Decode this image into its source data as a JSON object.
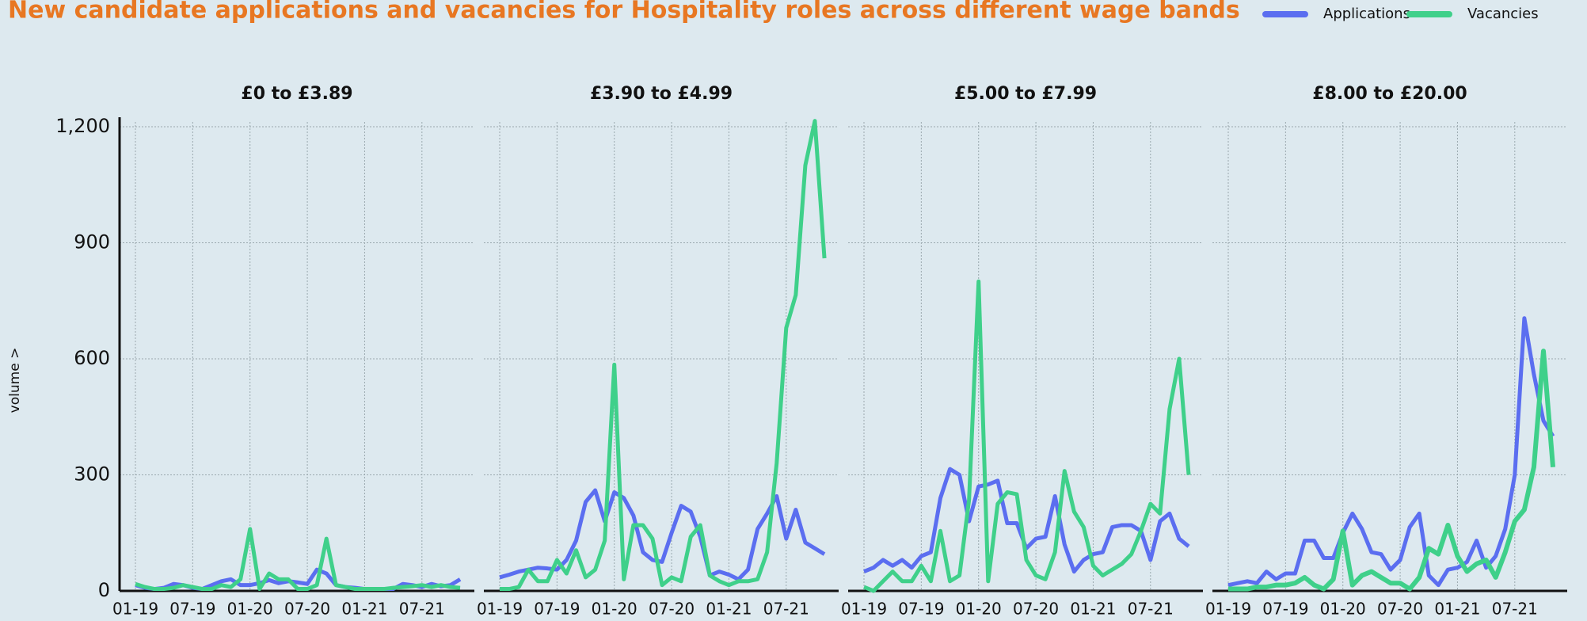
{
  "title": "New candidate applications and vacancies for Hospitality roles across different wage bands",
  "y_label": "volume >",
  "chart_data": [
    {
      "type": "line",
      "title": "£0 to £3.89",
      "grid": true,
      "legend": "top-right",
      "categories": [
        "01-19",
        null,
        null,
        null,
        null,
        null,
        "07-19",
        null,
        null,
        null,
        null,
        null,
        "01-20",
        null,
        null,
        null,
        null,
        null,
        "07-20",
        null,
        null,
        null,
        null,
        null,
        "01-21",
        null,
        null,
        null,
        null,
        null,
        "07-21",
        null,
        null,
        null,
        null
      ],
      "ylim": [
        0,
        1200
      ],
      "yticks": [
        0,
        300,
        600,
        900,
        {
          "value": 1200,
          "label": "1,200"
        }
      ],
      "series": [
        {
          "name": "Applications",
          "color": "#5b6ef0",
          "values": [
            15,
            8,
            5,
            8,
            18,
            15,
            8,
            5,
            15,
            25,
            30,
            15,
            15,
            20,
            28,
            20,
            25,
            22,
            18,
            55,
            45,
            15,
            10,
            8,
            5,
            5,
            5,
            5,
            18,
            15,
            10,
            18,
            12,
            15,
            30
          ]
        },
        {
          "name": "Vacancies",
          "color": "#3fd08a",
          "values": [
            18,
            10,
            5,
            5,
            8,
            15,
            10,
            5,
            5,
            15,
            10,
            30,
            160,
            5,
            45,
            30,
            30,
            5,
            5,
            15,
            135,
            15,
            10,
            5,
            5,
            5,
            5,
            8,
            10,
            12,
            15,
            10,
            15,
            10,
            8
          ]
        }
      ]
    },
    {
      "type": "line",
      "title": "£3.90 to £4.99",
      "categories": [
        "01-19",
        null,
        null,
        null,
        null,
        null,
        "07-19",
        null,
        null,
        null,
        null,
        null,
        "01-20",
        null,
        null,
        null,
        null,
        null,
        "07-20",
        null,
        null,
        null,
        null,
        null,
        "01-21",
        null,
        null,
        null,
        null,
        null,
        "07-21",
        null,
        null,
        null,
        null
      ],
      "series": [
        {
          "name": "Applications",
          "color": "#5b6ef0",
          "values": [
            35,
            42,
            50,
            55,
            60,
            58,
            55,
            80,
            130,
            230,
            260,
            180,
            255,
            240,
            195,
            100,
            80,
            75,
            150,
            220,
            205,
            140,
            40,
            50,
            42,
            30,
            55,
            160,
            200,
            245,
            135,
            210,
            125,
            110,
            95
          ]
        },
        {
          "name": "Vacancies",
          "color": "#3fd08a",
          "values": [
            5,
            5,
            10,
            55,
            25,
            25,
            80,
            45,
            105,
            35,
            55,
            130,
            585,
            30,
            170,
            170,
            135,
            15,
            35,
            25,
            140,
            170,
            40,
            25,
            15,
            25,
            25,
            30,
            100,
            330,
            680,
            765,
            1100,
            1215,
            860
          ]
        }
      ]
    },
    {
      "type": "line",
      "title": "£5.00 to £7.99",
      "categories": [
        "01-19",
        null,
        null,
        null,
        null,
        null,
        "07-19",
        null,
        null,
        null,
        null,
        null,
        "01-20",
        null,
        null,
        null,
        null,
        null,
        "07-20",
        null,
        null,
        null,
        null,
        null,
        "01-21",
        null,
        null,
        null,
        null,
        null,
        "07-21",
        null,
        null,
        null,
        null
      ],
      "series": [
        {
          "name": "Applications",
          "color": "#5b6ef0",
          "values": [
            50,
            60,
            80,
            65,
            80,
            60,
            90,
            100,
            240,
            315,
            300,
            180,
            270,
            275,
            285,
            175,
            175,
            110,
            135,
            140,
            245,
            120,
            50,
            80,
            95,
            100,
            165,
            170,
            170,
            155,
            80,
            180,
            200,
            135,
            115
          ]
        },
        {
          "name": "Vacancies",
          "color": "#3fd08a",
          "values": [
            10,
            0,
            25,
            50,
            25,
            25,
            65,
            25,
            155,
            25,
            40,
            235,
            800,
            25,
            225,
            255,
            250,
            80,
            40,
            30,
            100,
            310,
            205,
            165,
            65,
            40,
            55,
            70,
            95,
            155,
            225,
            200,
            470,
            600,
            300
          ]
        }
      ]
    },
    {
      "type": "line",
      "title": "£8.00 to £20.00",
      "categories": [
        "01-19",
        null,
        null,
        null,
        null,
        null,
        "07-19",
        null,
        null,
        null,
        null,
        null,
        "01-20",
        null,
        null,
        null,
        null,
        null,
        "07-20",
        null,
        null,
        null,
        null,
        null,
        "01-21",
        null,
        null,
        null,
        null,
        null,
        "07-21",
        null,
        null,
        null,
        null
      ],
      "series": [
        {
          "name": "Applications",
          "color": "#5b6ef0",
          "values": [
            15,
            20,
            25,
            20,
            50,
            30,
            45,
            45,
            130,
            130,
            85,
            85,
            150,
            200,
            160,
            100,
            95,
            55,
            80,
            165,
            200,
            40,
            15,
            55,
            60,
            75,
            130,
            60,
            90,
            160,
            300,
            705,
            560,
            440,
            400
          ]
        },
        {
          "name": "Vacancies",
          "color": "#3fd08a",
          "line_width": 6,
          "values": [
            5,
            5,
            5,
            10,
            10,
            15,
            15,
            20,
            35,
            15,
            5,
            30,
            155,
            15,
            40,
            50,
            35,
            20,
            20,
            5,
            35,
            110,
            95,
            170,
            90,
            50,
            70,
            80,
            35,
            100,
            180,
            210,
            320,
            620,
            320
          ]
        }
      ]
    }
  ]
}
